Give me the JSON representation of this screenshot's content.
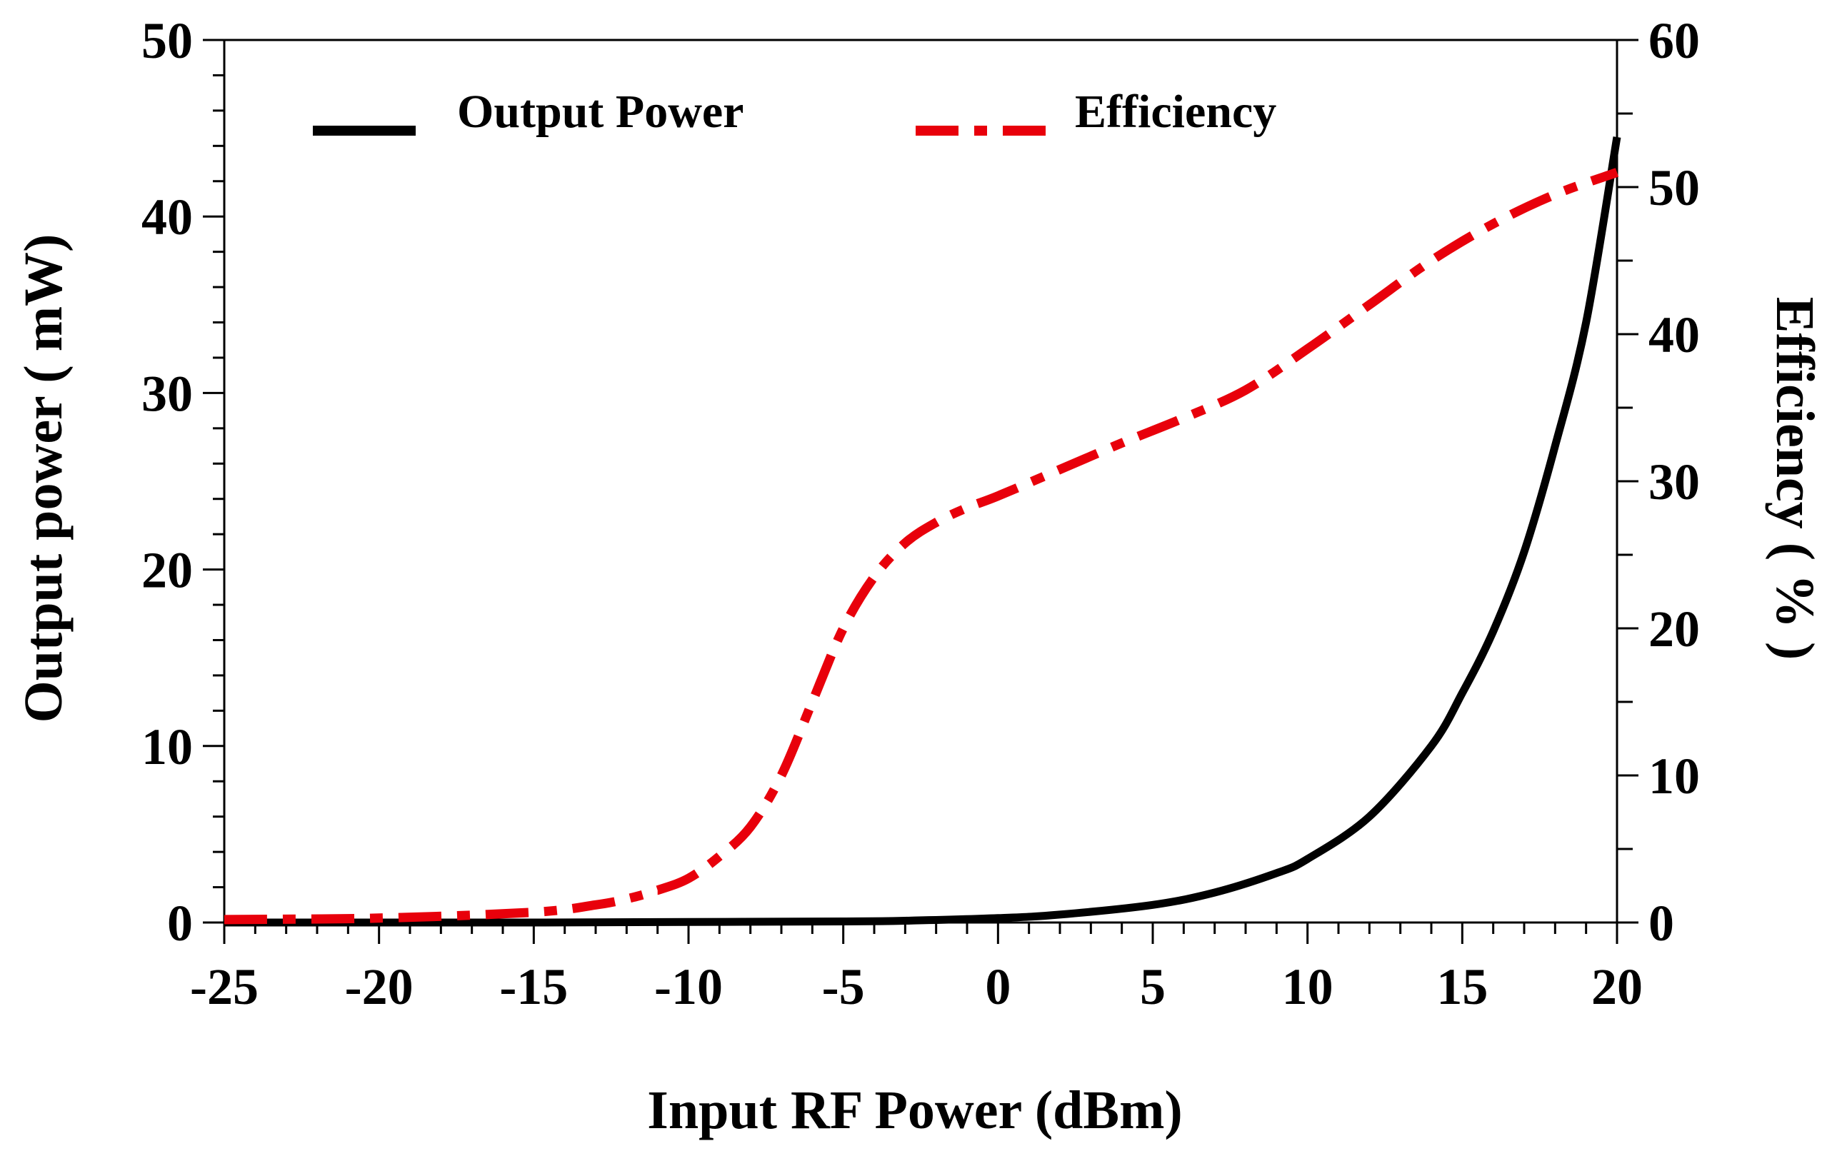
{
  "chart_data": {
    "type": "line",
    "title": "",
    "xlabel": "Input RF Power (dBm)",
    "ylabel_left": "Output power ( mW)",
    "ylabel_right": "Efficiency ( % )",
    "xlim": [
      -25,
      20
    ],
    "ylim_left": [
      0,
      50
    ],
    "ylim_right": [
      0,
      60
    ],
    "x_ticks": [
      -25,
      -20,
      -15,
      -10,
      -5,
      0,
      5,
      10,
      15,
      20
    ],
    "y_left_ticks": [
      0,
      10,
      20,
      30,
      40,
      50
    ],
    "y_right_ticks": [
      0,
      10,
      20,
      30,
      40,
      50,
      60
    ],
    "grid": false,
    "legend_position": "top",
    "series": [
      {
        "name": "Output Power",
        "axis": "left",
        "color": "#000000",
        "style": "solid",
        "x": [
          -25,
          -20,
          -15,
          -10,
          -5,
          -3,
          0,
          2,
          5,
          7,
          9,
          10,
          12,
          14,
          15,
          16,
          17,
          18,
          19,
          20
        ],
        "values": [
          0,
          0,
          0,
          0.03,
          0.06,
          0.1,
          0.25,
          0.45,
          1.0,
          1.7,
          2.8,
          3.6,
          6.0,
          10.0,
          13.0,
          16.5,
          21.0,
          27.0,
          34.0,
          44.5
        ]
      },
      {
        "name": "Efficiency",
        "axis": "right",
        "color": "#e8000b",
        "style": "dashdot",
        "x": [
          -25,
          -20,
          -15,
          -13,
          -12,
          -11,
          -10,
          -9,
          -8,
          -7,
          -6,
          -5,
          -4,
          -3,
          -2,
          -1,
          0,
          2,
          4,
          6,
          8,
          10,
          12,
          14,
          16,
          18,
          20
        ],
        "values": [
          0.2,
          0.3,
          0.7,
          1.2,
          1.6,
          2.2,
          3.0,
          4.5,
          6.5,
          10.0,
          15.0,
          20.0,
          23.5,
          25.8,
          27.2,
          28.2,
          29.0,
          30.8,
          32.6,
          34.3,
          36.2,
          39.0,
          42.0,
          45.0,
          47.5,
          49.5,
          51.0
        ]
      }
    ]
  }
}
